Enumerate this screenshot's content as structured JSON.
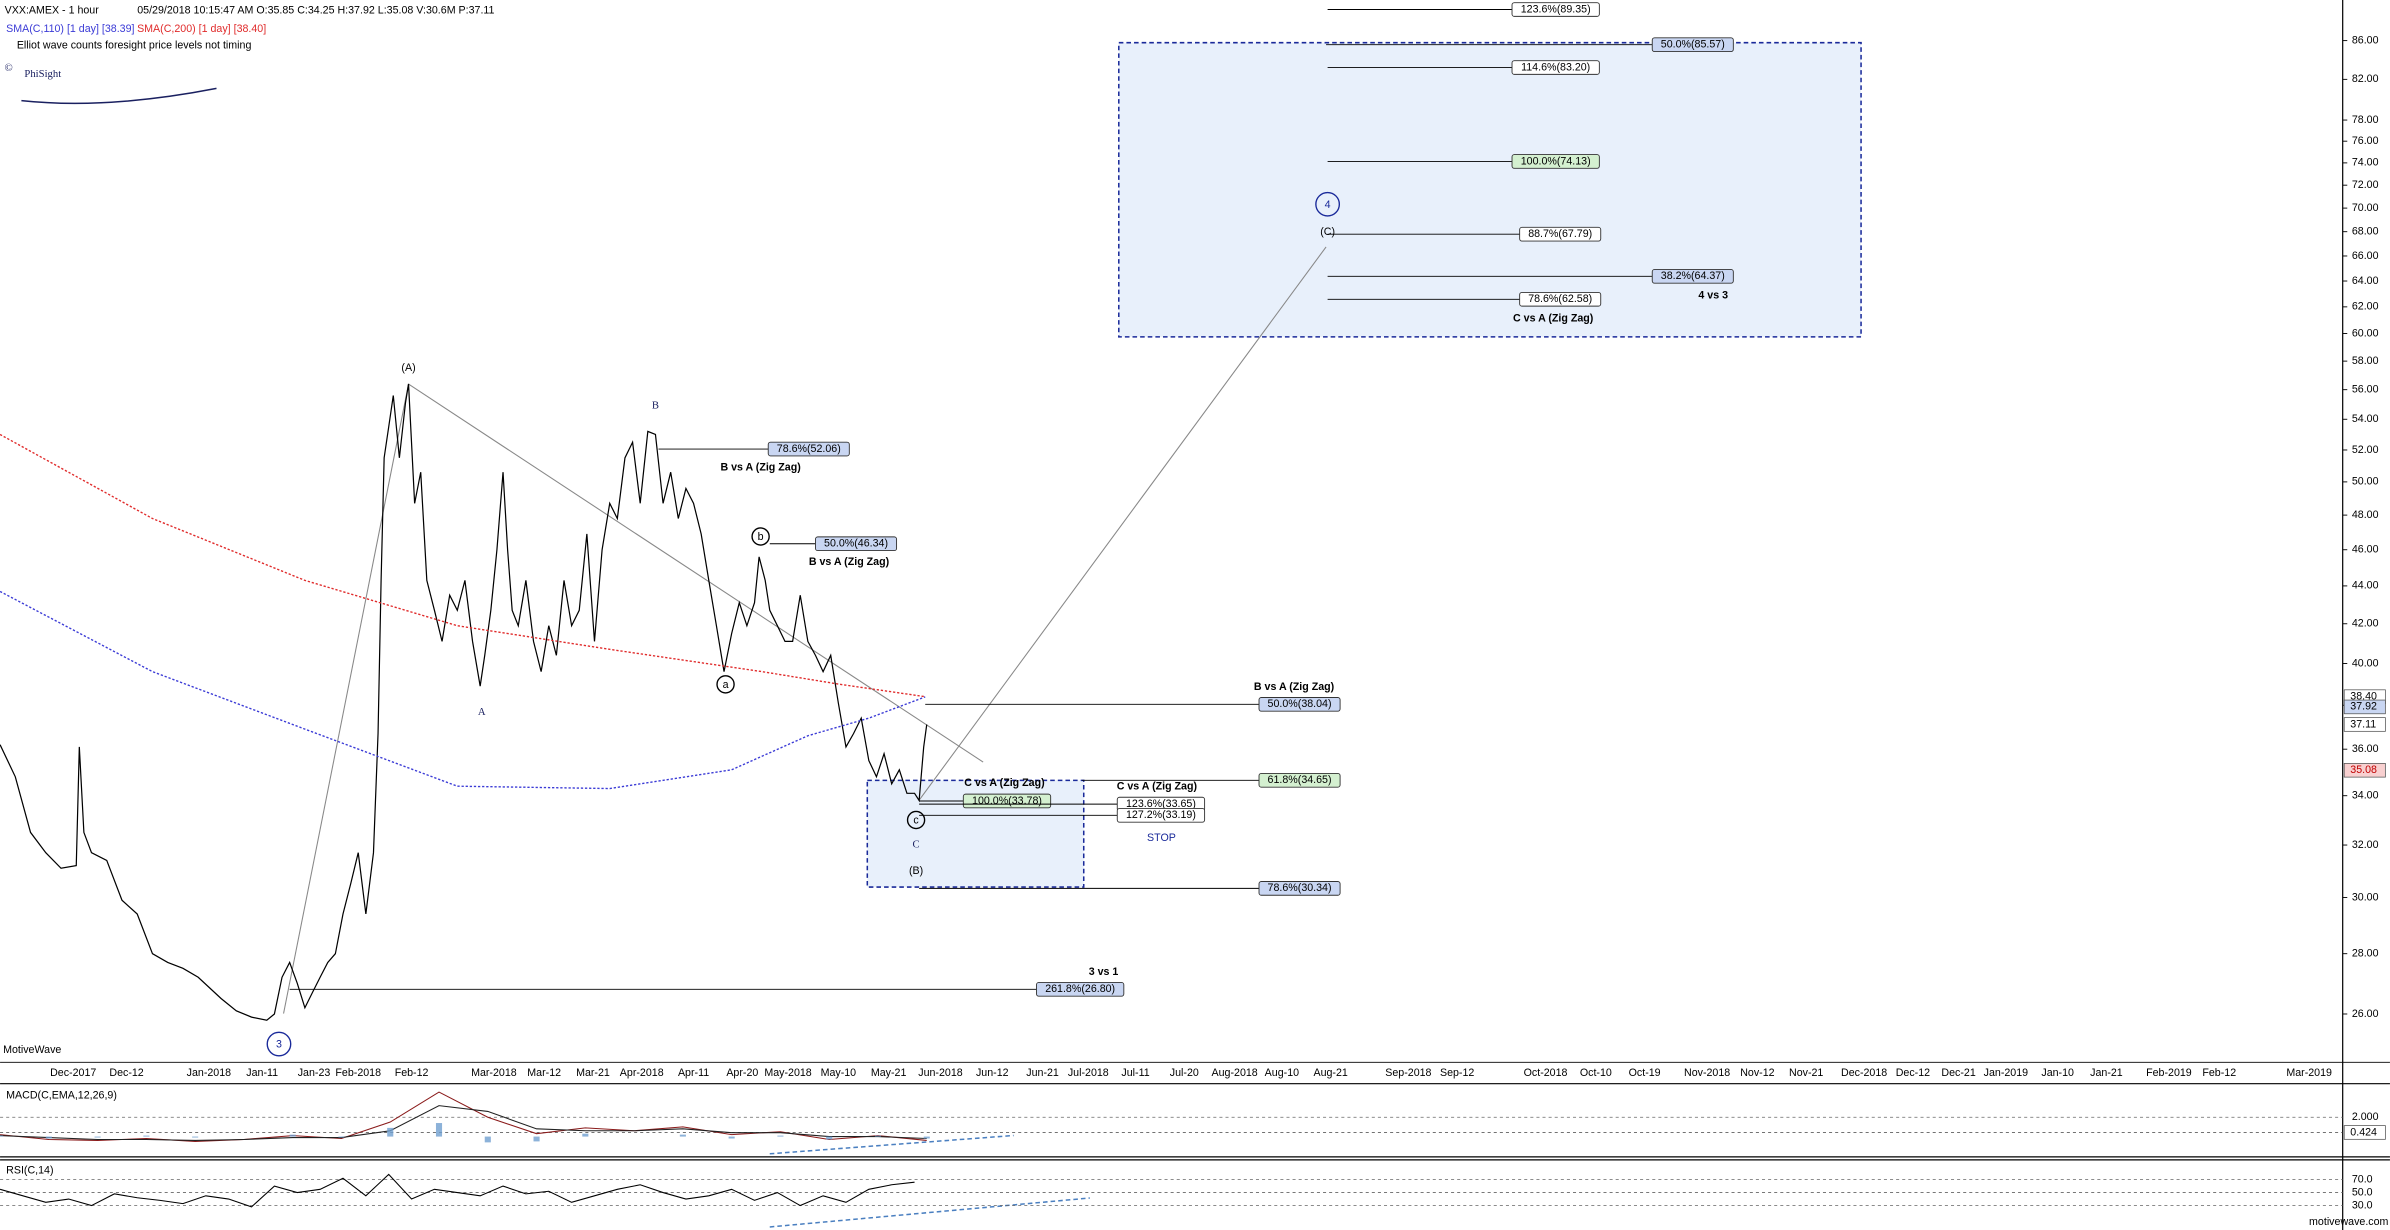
{
  "header": {
    "title": "VXX:AMEX - 1 hour",
    "info": "05/29/2018 10:15:47 AM  O:35.85  C:34.25  H:37.92  L:35.08  V:30.6M  P:37.11",
    "note": "Elliot wave counts foresight price levels not timing",
    "logo_mark": "©",
    "logo": "PhiSight",
    "watermark": "MotiveWave",
    "footer": "motivewave.com"
  },
  "chart_data": [
    {
      "type": "line",
      "title": "VXX:AMEX - 1 hour",
      "log_scale": true,
      "ylim": [
        24.5,
        90.4
      ],
      "yticks": [
        {
          "value": 26,
          "label": "26.00"
        },
        {
          "value": 28,
          "label": "28.00"
        },
        {
          "value": 30,
          "label": "30.00"
        },
        {
          "value": 32,
          "label": "32.00"
        },
        {
          "value": 34,
          "label": "34.00"
        },
        {
          "value": 36,
          "label": "36.00"
        },
        {
          "value": 38,
          "label": "38.00"
        },
        {
          "value": 40,
          "label": "40.00"
        },
        {
          "value": 42,
          "label": "42.00"
        },
        {
          "value": 44,
          "label": "44.00"
        },
        {
          "value": 46,
          "label": "46.00"
        },
        {
          "value": 48,
          "label": "48.00"
        },
        {
          "value": 50,
          "label": "50.00"
        },
        {
          "value": 52,
          "label": "52.00"
        },
        {
          "value": 54,
          "label": "54.00"
        },
        {
          "value": 56,
          "label": "56.00"
        },
        {
          "value": 58,
          "label": "58.00"
        },
        {
          "value": 60,
          "label": "60.00"
        },
        {
          "value": 62,
          "label": "62.00"
        },
        {
          "value": 64,
          "label": "64.00"
        },
        {
          "value": 66,
          "label": "66.00"
        },
        {
          "value": 68,
          "label": "68.00"
        },
        {
          "value": 70,
          "label": "70.00"
        },
        {
          "value": 72,
          "label": "72.00"
        },
        {
          "value": 74,
          "label": "74.00"
        },
        {
          "value": 76,
          "label": "76.00"
        },
        {
          "value": 78,
          "label": "78.00"
        },
        {
          "value": 82,
          "label": "82.00"
        },
        {
          "value": 86,
          "label": "86.00"
        }
      ],
      "x_axis_labels": [
        "Dec-2017",
        "Dec-12",
        "Jan-2018",
        "Jan-11",
        "Jan-23",
        "Feb-2018",
        "Feb-12",
        "Mar-2018",
        "Mar-12",
        "Mar-21",
        "Apr-2018",
        "Apr-11",
        "Apr-20",
        "May-2018",
        "May-10",
        "May-21",
        "Jun-2018",
        "Jun-12",
        "Jun-21",
        "Jul-2018",
        "Jul-11",
        "Jul-20",
        "Aug-2018",
        "Aug-10",
        "Aug-21",
        "Sep-2018",
        "Sep-12",
        "Oct-2018",
        "Oct-10",
        "Oct-19",
        "Nov-2018",
        "Nov-12",
        "Nov-21",
        "Dec-2018",
        "Dec-12",
        "Dec-21",
        "Jan-2019",
        "Jan-10",
        "Jan-21",
        "Feb-2019",
        "Feb-12",
        "Mar-2019"
      ],
      "series": [
        {
          "color": "#000000",
          "values": [
            36.2,
            34.8,
            32.5,
            31.7,
            31.1,
            31.2,
            36.1,
            32.5,
            31.7,
            31.4,
            29.9,
            29.4,
            28.0,
            27.7,
            27.5,
            27.2,
            26.5,
            26.1,
            25.9,
            25.8,
            26.0,
            27.2,
            27.7,
            27.0,
            26.2,
            26.7,
            27.2,
            27.7,
            28.0,
            29.4,
            30.5,
            31.7,
            29.4,
            31.7,
            36.7,
            44.3,
            51.5,
            53.5,
            55.6,
            51.5,
            55.1,
            56.4,
            48.7,
            50.6,
            44.3,
            42.7,
            41.1,
            43.5,
            42.7,
            44.3,
            41.1,
            38.9,
            40.4,
            42.7,
            46.0,
            50.6,
            46.0,
            42.7,
            41.9,
            44.3,
            41.1,
            39.6,
            41.9,
            40.4,
            44.3,
            41.9,
            42.7,
            46.9,
            41.1,
            46.0,
            48.7,
            47.8,
            51.5,
            52.5,
            48.7,
            53.2,
            53.0,
            48.7,
            50.6,
            47.8,
            49.6,
            48.7,
            46.9,
            44.3,
            41.9,
            39.6,
            41.5,
            43.1,
            41.9,
            43.1,
            45.6,
            44.3,
            42.7,
            41.9,
            41.1,
            41.1,
            43.5,
            41.1,
            40.4,
            39.6,
            40.4,
            38.1,
            36.1,
            36.7,
            37.4,
            35.5,
            34.8,
            35.8,
            34.5,
            35.1,
            34.1,
            34.1,
            33.8,
            36.1,
            37.11
          ]
        },
        {
          "name": "SMA(C,110) [1 day] [38.39]",
          "color": "#3b3bd6",
          "values": [
            43.7,
            39.6,
            36.9,
            34.4,
            34.3,
            35.1,
            36.6,
            37.4,
            38.39
          ]
        },
        {
          "name": "SMA(C,200) [1 day] [38.40]",
          "color": "#e02b2b",
          "values": [
            53.0,
            47.8,
            44.3,
            41.9,
            40.7,
            39.6,
            39.0,
            38.4
          ]
        }
      ],
      "price_tags": [
        {
          "value": 38.4,
          "label": "38.40",
          "color": "#ffffff"
        },
        {
          "value": 37.92,
          "label": "37.92",
          "color": "#c9d6f2"
        },
        {
          "value": 37.11,
          "label": "37.11",
          "color": "#ffffff"
        },
        {
          "value": 35.08,
          "label": "35.08",
          "color": "#f8d0d0"
        }
      ],
      "levels": [
        {
          "value": 89.35,
          "label": "123.6%(89.35)",
          "color": "#ffffff"
        },
        {
          "value": 85.57,
          "label": "50.0%(85.57)",
          "color": "#c9d6f2"
        },
        {
          "value": 83.2,
          "label": "114.6%(83.20)",
          "color": "#ffffff"
        },
        {
          "value": 74.13,
          "label": "100.0%(74.13)",
          "color": "#d4f0d0"
        },
        {
          "value": 67.79,
          "label": "88.7%(67.79)",
          "color": "#ffffff"
        },
        {
          "value": 64.37,
          "label": "38.2%(64.37)",
          "color": "#c9d6f2"
        },
        {
          "value": 62.58,
          "label": "78.6%(62.58)",
          "color": "#ffffff"
        },
        {
          "value": 52.06,
          "label": "78.6%(52.06)",
          "color": "#c9d6f2"
        },
        {
          "value": 46.34,
          "label": "50.0%(46.34)",
          "color": "#c9d6f2"
        },
        {
          "value": 38.04,
          "label": "50.0%(38.04)",
          "color": "#c9d6f2"
        },
        {
          "value": 34.65,
          "label": "61.8%(34.65)",
          "color": "#d4f0d0"
        },
        {
          "value": 33.78,
          "label": "100.0%(33.78)",
          "color": "#d4f0d0"
        },
        {
          "value": 33.65,
          "label": "123.6%(33.65)",
          "color": "#ffffff"
        },
        {
          "value": 33.19,
          "label": "127.2%(33.19)",
          "color": "#ffffff"
        },
        {
          "value": 30.34,
          "label": "78.6%(30.34)",
          "color": "#c9d6f2"
        },
        {
          "value": 26.8,
          "label": "261.8%(26.80)",
          "color": "#c9d6f2"
        }
      ],
      "captions": [
        "B vs A (Zig Zag)",
        "B vs A (Zig Zag)",
        "C vs A (Zig Zag)",
        "4 vs 3",
        "B vs A (Zig Zag)",
        "C vs A (Zig Zag)",
        "C vs A (Zig Zag)",
        "3 vs 1",
        "STOP"
      ],
      "waves": [
        "(A)",
        "B",
        "A",
        "a",
        "b",
        "c",
        "C",
        "(B)",
        "4",
        "(C)",
        "3"
      ]
    },
    {
      "type": "line",
      "title": "MACD(C,EMA,12,26,9)",
      "ylim": [
        -1.78,
        5.31
      ],
      "yticks": [
        {
          "value": 2,
          "label": "2.000"
        }
      ],
      "current": {
        "value": 0.424,
        "label": "0.424"
      },
      "series": [
        {
          "color": "#8a1a1a",
          "values": [
            0.2,
            -0.3,
            -0.4,
            -0.2,
            -0.5,
            -0.3,
            0.1,
            -0.2,
            1.5,
            4.6,
            2.0,
            0.3,
            0.9,
            0.6,
            1.0,
            0.2,
            0.5,
            -0.3,
            0.1,
            -0.4
          ]
        },
        {
          "color": "#222222",
          "values": [
            0.1,
            -0.1,
            -0.3,
            -0.3,
            -0.4,
            -0.3,
            -0.1,
            -0.1,
            0.6,
            3.2,
            2.6,
            0.8,
            0.6,
            0.6,
            0.8,
            0.4,
            0.4,
            0.0,
            0.0,
            -0.2
          ]
        },
        {
          "color": "#6f9fd0",
          "values": [
            0.1,
            -0.2,
            -0.1,
            0.1,
            -0.1,
            0,
            0.2,
            -0.1,
            0.9,
            1.4,
            -0.6,
            -0.5,
            0.3,
            0,
            0.2,
            -0.2,
            0.1,
            -0.3,
            0.1,
            -0.2
          ]
        }
      ]
    },
    {
      "type": "line",
      "title": "RSI(C,14)",
      "ylim": [
        -3,
        98
      ],
      "yticks": [
        {
          "value": 70,
          "label": "70.0"
        },
        {
          "value": 50,
          "label": "50.0"
        },
        {
          "value": 30,
          "label": "30.0"
        }
      ],
      "series": [
        {
          "color": "#000000",
          "values": [
            55,
            45,
            35,
            40,
            30,
            48,
            42,
            38,
            33,
            45,
            40,
            28,
            60,
            50,
            55,
            72,
            45,
            78,
            40,
            55,
            50,
            45,
            60,
            48,
            52,
            35,
            45,
            55,
            62,
            50,
            40,
            45,
            55,
            38,
            50,
            30,
            45,
            35,
            55,
            62,
            66
          ]
        }
      ]
    }
  ]
}
